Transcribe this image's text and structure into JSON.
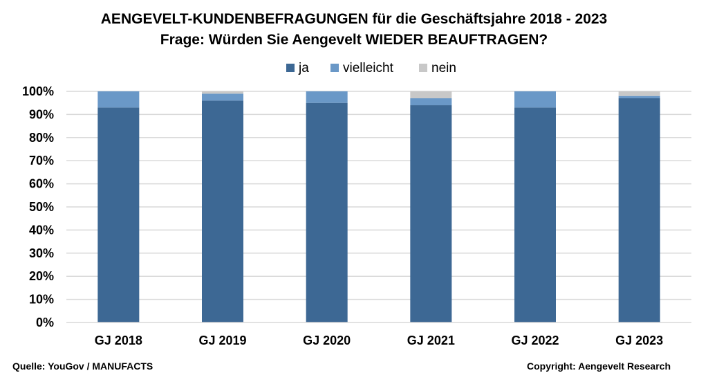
{
  "chart_data": {
    "type": "bar",
    "stacked": true,
    "title": "AENGEVELT-KUNDENBEFRAGUNGEN für die Geschäftsjahre 2018 - 2023",
    "subtitle": "Frage: Würden Sie Aengevelt WIEDER BEAUFTRAGEN?",
    "categories": [
      "GJ 2018",
      "GJ 2019",
      "GJ 2020",
      "GJ 2021",
      "GJ 2022",
      "GJ 2023"
    ],
    "series": [
      {
        "name": "ja",
        "color": "#3d6894",
        "values": [
          93,
          96,
          95,
          94,
          93,
          97
        ]
      },
      {
        "name": "vielleicht",
        "color": "#6a98c7",
        "values": [
          7,
          3,
          5,
          3,
          7,
          1
        ]
      },
      {
        "name": "nein",
        "color": "#c8c8c8",
        "values": [
          0,
          1,
          0,
          3,
          0,
          2
        ]
      }
    ],
    "ylim": [
      0,
      100
    ],
    "yticks": [
      "0%",
      "10%",
      "20%",
      "30%",
      "40%",
      "50%",
      "60%",
      "70%",
      "80%",
      "90%",
      "100%"
    ],
    "grid": true,
    "legend": "top-center"
  },
  "footer": {
    "source": "Quelle: YouGov / MANUFACTS",
    "copyright": "Copyright: Aengevelt Research"
  }
}
